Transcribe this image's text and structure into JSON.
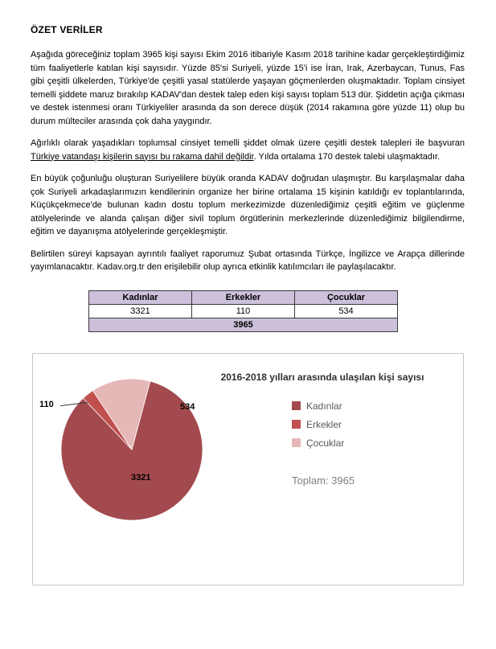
{
  "document": {
    "title": "ÖZET VERİLER",
    "paragraphs": {
      "p1": "Aşağıda göreceğiniz toplam 3965 kişi sayısı Ekim 2016 itibariyle Kasım 2018 tarihine kadar gerçekleştirdiğimiz tüm faaliyetlerle katılan kişi sayısıdır. Yüzde 85'si Suriyeli, yüzde 15'i ise İran, Irak, Azerbaycan, Tunus, Fas gibi çeşitli ülkelerden, Türkiye'de çeşitli yasal statülerde yaşayan göçmenlerden oluşmaktadır. Toplam cinsiyet temelli şiddete maruz bırakılıp KADAV'dan destek talep eden kişi sayısı toplam 513 dür. Şiddetin açığa çıkması ve destek istenmesi oranı Türkiyeliler arasında da son derece düşük (2014 rakamına göre yüzde 11) olup bu durum mülteciler arasında çok daha yaygındır.",
      "p2_pre": "Ağırlıklı olarak yaşadıkları toplumsal cinsiyet temelli şiddet olmak üzere çeşitli destek talepleri ile başvuran ",
      "p2_underline": "Türkiye vatandaşı kişilerin sayısı bu rakama dahil değildir",
      "p2_post": ". Yılda ortalama 170 destek talebi ulaşmaktadır.",
      "p3": "En büyük çoğunluğu oluşturan Suriyelilere büyük oranda KADAV doğrudan ulaşmıştır. Bu karşılaşmalar daha çok Suriyeli arkadaşlarımızın kendilerinin organize her birine ortalama 15 kişinin katıldığı ev toplantılarında, Küçükçekmece'de bulunan kadın dostu toplum merkezimizde düzenlediğimiz çeşitli eğitim ve güçlenme atölyelerinde ve alanda çalışan diğer sivil toplum örgütlerinin merkezlerinde düzenlediğimiz bilgilendirme, eğitim ve dayanışma atölyelerinde gerçekleşmiştir.",
      "p4": "Belirtilen süreyi kapsayan ayrıntılı faaliyet raporumuz Şubat ortasında Türkçe, İngilizce ve Arapça dillerinde yayımlanacaktır. Kadav.org.tr den erişilebilir olup ayrıca etkinlik katılımcıları ile paylaşılacaktır."
    }
  },
  "table": {
    "headers": [
      "Kadınlar",
      "Erkekler",
      "Çocuklar"
    ],
    "values": [
      "3321",
      "110",
      "534"
    ],
    "total": "3965",
    "header_bg": "#CCC0DA"
  },
  "chart_data": {
    "type": "pie",
    "title": "2016-2018 yılları arasında ulaşılan kişi sayısı",
    "categories": [
      "Kadınlar",
      "Erkekler",
      "Çocuklar"
    ],
    "values": [
      3321,
      110,
      534
    ],
    "colors": [
      "#A34A4E",
      "#C0504D",
      "#E5B8B7"
    ],
    "total_label": "Toplam: 3965",
    "start_angle_deg": 15,
    "direction": "clockwise",
    "legend_position": "right"
  }
}
